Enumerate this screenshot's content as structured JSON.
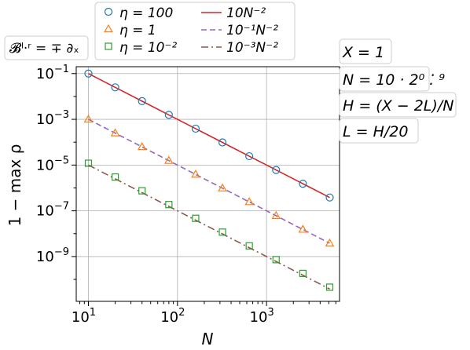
{
  "chart_data": {
    "type": "line",
    "title": "",
    "xlabel": "N",
    "ylabel": "1 − max ρ",
    "x_scale": "log",
    "y_scale": "log",
    "xlim": [
      7.3,
      6600
    ],
    "ylim": [
      1.1e-11,
      0.2
    ],
    "x_ticks": [
      {
        "value": 10,
        "base": "10",
        "exp": "1"
      },
      {
        "value": 100,
        "base": "10",
        "exp": "2"
      },
      {
        "value": 1000,
        "base": "10",
        "exp": "3"
      }
    ],
    "y_ticks": [
      {
        "value": 0.1,
        "base": "10",
        "exp": "−1"
      },
      {
        "value": 0.001,
        "base": "10",
        "exp": "−3"
      },
      {
        "value": 1e-05,
        "base": "10",
        "exp": "−5"
      },
      {
        "value": 1e-07,
        "base": "10",
        "exp": "−7"
      },
      {
        "value": 1e-09,
        "base": "10",
        "exp": "−9"
      }
    ],
    "grid": true,
    "legend_position": "top",
    "x": [
      10,
      20,
      40,
      80,
      160,
      320,
      640,
      1280,
      2560,
      5120
    ],
    "series": [
      {
        "name": "η = 100",
        "kind": "markers",
        "marker": "circle",
        "color": "#1f77b4",
        "values": [
          0.1,
          0.025,
          0.00625,
          0.0015625,
          0.000390625,
          9.765625e-05,
          2.44140625e-05,
          6.103515625e-06,
          1.52587890625e-06,
          3.814697265625e-07
        ]
      },
      {
        "name": "η = 1",
        "kind": "markers",
        "marker": "triangle",
        "color": "#ff7f0e",
        "values": [
          0.001,
          0.00025,
          6.25e-05,
          1.5625e-05,
          3.90625e-06,
          9.765625e-07,
          2.44140625e-07,
          6.103515625e-08,
          1.52587890625e-08,
          3.814697265625e-09
        ]
      },
      {
        "name": "η = 10⁻²",
        "kind": "markers",
        "marker": "square",
        "color": "#2ca02c",
        "values": [
          1.2e-05,
          3e-06,
          7.5e-07,
          1.875e-07,
          4.6875e-08,
          1.171875e-08,
          2.9296875e-09,
          7.32421875e-10,
          1.8310546875e-10,
          4.57763671875e-11
        ]
      },
      {
        "name": "10N⁻²",
        "kind": "line",
        "dash": "solid",
        "color": "#d62728",
        "values": [
          0.1,
          0.025,
          0.00625,
          0.0015625,
          0.000390625,
          9.765625e-05,
          2.44140625e-05,
          6.103515625e-06,
          1.52587890625e-06,
          3.814697265625e-07
        ]
      },
      {
        "name": "10⁻¹N⁻²",
        "kind": "line",
        "dash": "dashed",
        "color": "#9467bd",
        "values": [
          0.001,
          0.00025,
          6.25e-05,
          1.5625e-05,
          3.90625e-06,
          9.765625e-07,
          2.44140625e-07,
          6.103515625e-08,
          1.52587890625e-08,
          3.814697265625e-09
        ]
      },
      {
        "name": "10⁻³N⁻²",
        "kind": "line",
        "dash": "dashdot",
        "color": "#8c564b",
        "values": [
          1e-05,
          2.5e-06,
          6.25e-07,
          1.5625e-07,
          3.90625e-08,
          9.765625e-09,
          2.44140625e-09,
          6.103515625e-10,
          1.52587890625e-10,
          3.814697265625e-11
        ]
      }
    ],
    "legend_entries": [
      {
        "label": "η = 100",
        "ref": 0
      },
      {
        "label": "η = 1",
        "ref": 1
      },
      {
        "label": "η = 10⁻²",
        "ref": 2
      },
      {
        "label": "10N⁻²",
        "ref": 3
      },
      {
        "label": "10⁻¹N⁻²",
        "ref": 4
      },
      {
        "label": "10⁻³N⁻²",
        "ref": 5
      }
    ],
    "annotations": {
      "boundary": "𝓑ˡ·ʳ = ∓ ∂ₓ",
      "side": [
        "X = 1",
        "N = 10 · 2⁰ ⁚ ⁹",
        "H = (X − 2L)/N",
        "L = H/20"
      ]
    }
  }
}
